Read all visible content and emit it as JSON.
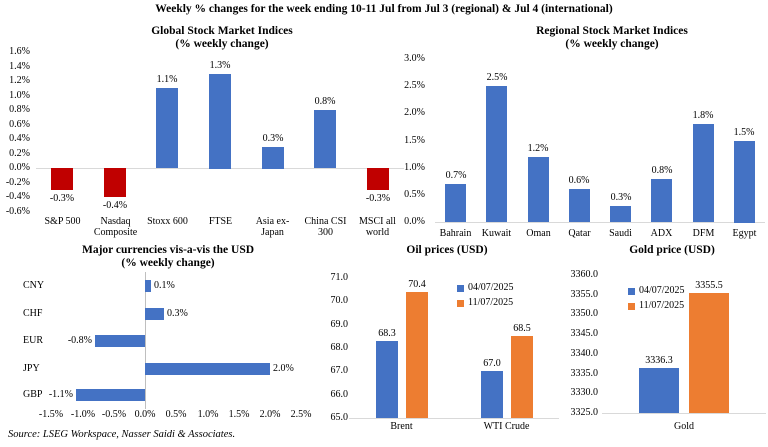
{
  "page_title": "Weekly % changes for the week ending 10-11 Jul from Jul 3 (regional) & Jul 4 (international)",
  "source_note": "Source: LSEG Workspace, Nasser Saidi & Associates.",
  "colors": {
    "positive_bar": "#4472C4",
    "negative_bar": "#C00000",
    "prev_week_series": "#4472C4",
    "latest_week_series": "#ED7D31",
    "axis_line": "#D9D9D9",
    "zero_axis_line": "#BFBFBF",
    "text": "#000000"
  },
  "chart_data": [
    {
      "id": "global",
      "type": "bar",
      "title": "Global Stock Market Indices",
      "subtitle": "(% weekly change)",
      "categories": [
        "S&P 500",
        "Nasdaq Composite",
        "Stoxx 600",
        "FTSE",
        "Asia ex-Japan",
        "China CSI 300",
        "MSCI all world"
      ],
      "values": [
        -0.3,
        -0.4,
        1.1,
        1.3,
        0.3,
        0.8,
        -0.3
      ],
      "data_labels": [
        "-0.3%",
        "-0.4%",
        "1.1%",
        "1.3%",
        "0.3%",
        "0.8%",
        "-0.3%"
      ],
      "ylim": [
        -0.6,
        1.6
      ],
      "yticks": [
        "1.6%",
        "1.4%",
        "1.2%",
        "1.0%",
        "0.8%",
        "0.6%",
        "0.4%",
        "0.2%",
        "0.0%",
        "-0.2%",
        "-0.4%",
        "-0.6%"
      ],
      "bar_color": "#4472C4",
      "negative_bar_color": "#C00000",
      "grid": false,
      "legend_position": null
    },
    {
      "id": "regional",
      "type": "bar",
      "title": "Regional Stock Market Indices",
      "subtitle": "(% weekly change)",
      "categories": [
        "Bahrain",
        "Kuwait",
        "Oman",
        "Qatar",
        "Saudi",
        "ADX",
        "DFM",
        "Egypt"
      ],
      "values": [
        0.7,
        2.5,
        1.2,
        0.6,
        0.3,
        0.8,
        1.8,
        1.5
      ],
      "data_labels": [
        "0.7%",
        "2.5%",
        "1.2%",
        "0.6%",
        "0.3%",
        "0.8%",
        "1.8%",
        "1.5%"
      ],
      "ylim": [
        0,
        3.0
      ],
      "yticks": [
        "3.0%",
        "2.5%",
        "2.0%",
        "1.5%",
        "1.0%",
        "0.5%",
        "0.0%"
      ],
      "bar_color": "#4472C4",
      "negative_bar_color": "#C00000",
      "grid": false,
      "legend_position": null
    },
    {
      "id": "currencies",
      "type": "bar-horizontal",
      "title": "Major currencies vis-a-vis the USD",
      "subtitle": "(% weekly change)",
      "categories": [
        "CNY",
        "CHF",
        "EUR",
        "JPY",
        "GBP"
      ],
      "values": [
        0.1,
        0.3,
        -0.8,
        2.0,
        -1.1
      ],
      "data_labels": [
        "0.1%",
        "0.3%",
        "-0.8%",
        "2.0%",
        "-1.1%"
      ],
      "xlim": [
        -1.5,
        2.5
      ],
      "xticks": [
        "-1.5%",
        "-1.0%",
        "-0.5%",
        "0.0%",
        "0.5%",
        "1.0%",
        "1.5%",
        "2.0%",
        "2.5%"
      ],
      "bar_color": "#4472C4",
      "grid": false,
      "legend_position": null
    },
    {
      "id": "oil",
      "type": "bar",
      "title": "Oil prices (USD)",
      "subtitle": null,
      "categories": [
        "Brent",
        "WTI Crude"
      ],
      "series": [
        {
          "name": "04/07/2025",
          "values": [
            68.3,
            67.0
          ],
          "data_labels": [
            "68.3",
            "67.0"
          ],
          "color": "#4472C4"
        },
        {
          "name": "11/07/2025",
          "values": [
            70.4,
            68.5
          ],
          "data_labels": [
            "70.4",
            "68.5"
          ],
          "color": "#ED7D31"
        }
      ],
      "ylim": [
        65.0,
        71.0
      ],
      "yticks": [
        "71.0",
        "70.0",
        "69.0",
        "68.0",
        "67.0",
        "66.0",
        "65.0"
      ],
      "grid": false,
      "legend_position": "inside-top-right"
    },
    {
      "id": "gold",
      "type": "bar",
      "title": "Gold price (USD)",
      "subtitle": null,
      "categories": [
        "Gold"
      ],
      "series": [
        {
          "name": "04/07/2025",
          "values": [
            3336.3
          ],
          "data_labels": [
            "3336.3"
          ],
          "color": "#4472C4"
        },
        {
          "name": "11/07/2025",
          "values": [
            3355.5
          ],
          "data_labels": [
            "3355.5"
          ],
          "color": "#ED7D31"
        }
      ],
      "ylim": [
        3325.0,
        3360.0
      ],
      "yticks": [
        "3360.0",
        "3355.0",
        "3350.0",
        "3345.0",
        "3340.0",
        "3335.0",
        "3330.0",
        "3325.0"
      ],
      "grid": false,
      "legend_position": "inside-top-left"
    }
  ]
}
